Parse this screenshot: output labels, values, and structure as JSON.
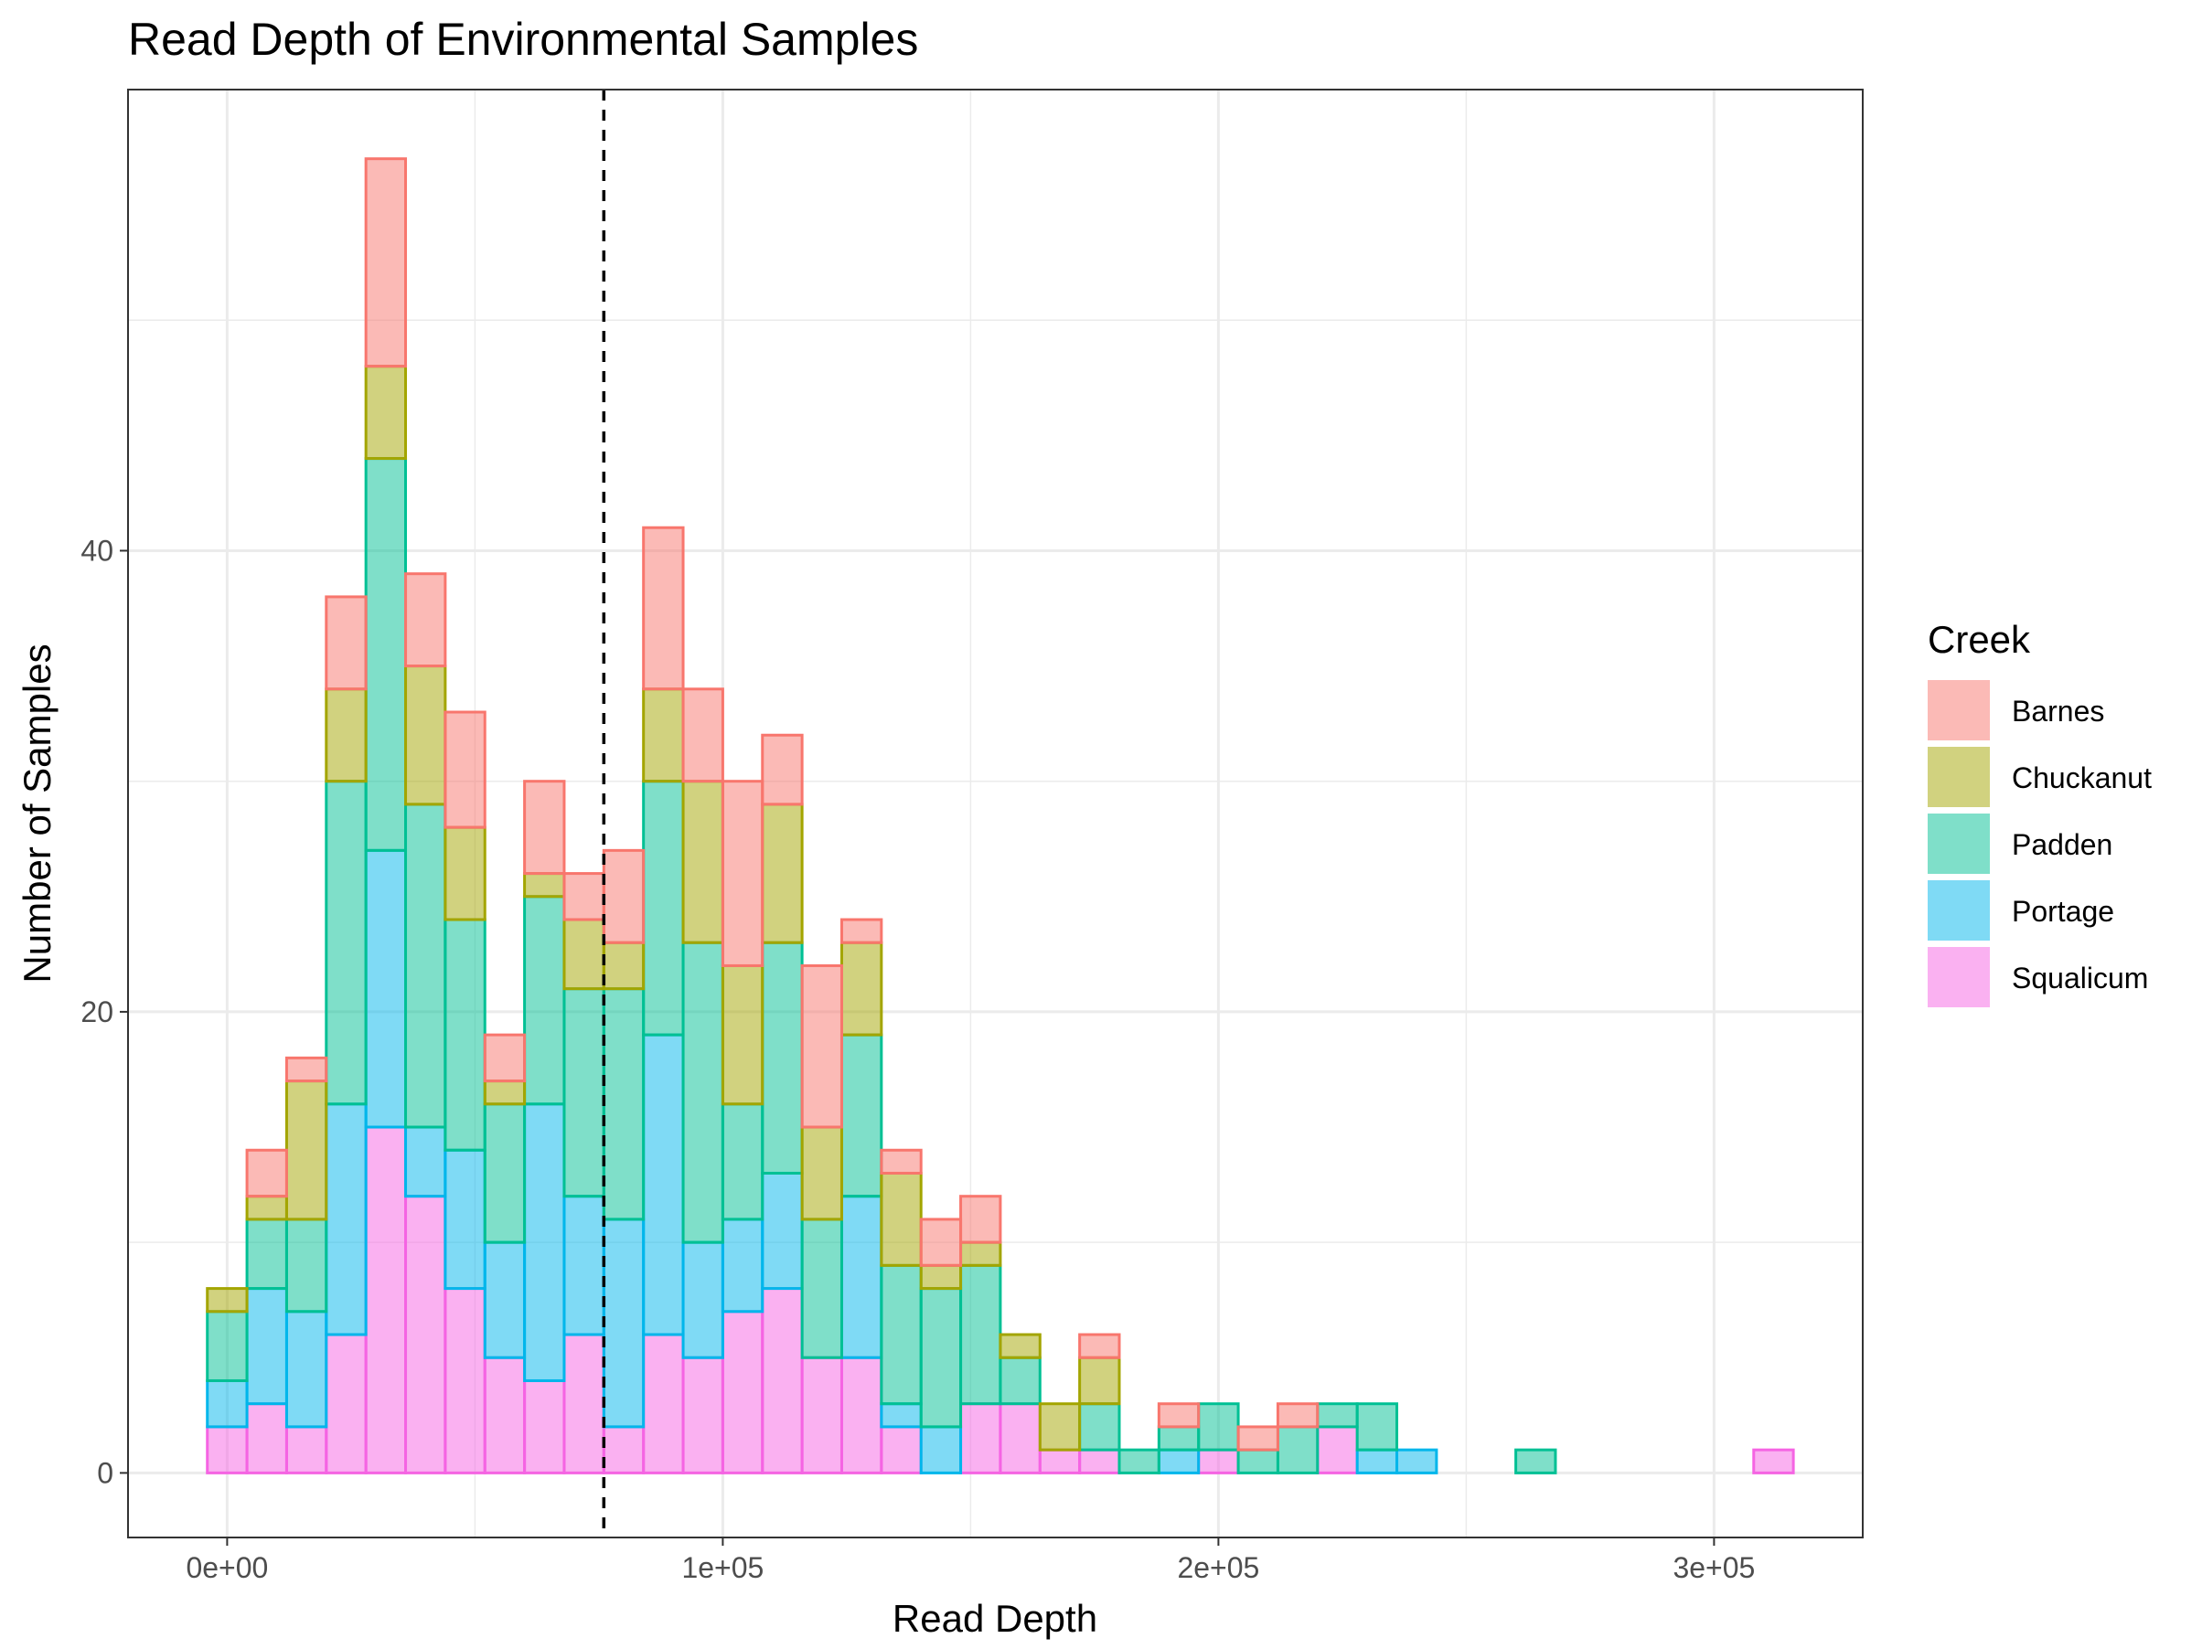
{
  "chart_data": {
    "type": "histogram",
    "stacked": true,
    "title": "Read Depth of Environmental Samples",
    "xlabel": "Read Depth",
    "ylabel": "Number of Samples",
    "xlim": [
      -20000,
      330000
    ],
    "ylim": [
      -2.8,
      60
    ],
    "x_ticks": [
      0,
      100000,
      200000,
      300000
    ],
    "x_tick_labels": [
      "0e+00",
      "1e+05",
      "2e+05",
      "3e+05"
    ],
    "y_ticks": [
      0,
      20,
      40
    ],
    "y_tick_labels": [
      "0",
      "20",
      "40"
    ],
    "grid": true,
    "bin_width": 8000,
    "bin_centers": [
      0,
      8000,
      16000,
      24000,
      32000,
      40000,
      48000,
      56000,
      64000,
      72000,
      80000,
      88000,
      96000,
      104000,
      112000,
      120000,
      128000,
      136000,
      144000,
      152000,
      160000,
      168000,
      176000,
      184000,
      192000,
      200000,
      208000,
      216000,
      224000,
      232000,
      240000,
      248000,
      256000,
      264000,
      272000,
      280000,
      288000,
      296000,
      304000,
      312000
    ],
    "series": [
      {
        "name": "Squalicum",
        "color": "#F564E3",
        "values": [
          2,
          3,
          2,
          6,
          15,
          12,
          8,
          5,
          4,
          6,
          2,
          6,
          5,
          7,
          8,
          5,
          5,
          2,
          0,
          3,
          3,
          1,
          1,
          0,
          0,
          1,
          0,
          0,
          2,
          0,
          0,
          0,
          0,
          0,
          0,
          0,
          0,
          0,
          0,
          1
        ]
      },
      {
        "name": "Portage",
        "color": "#00B6EB",
        "values": [
          2,
          5,
          5,
          10,
          12,
          3,
          6,
          5,
          12,
          6,
          9,
          13,
          5,
          4,
          5,
          0,
          7,
          1,
          2,
          0,
          0,
          0,
          0,
          0,
          1,
          0,
          0,
          0,
          0,
          1,
          1,
          0,
          0,
          0,
          0,
          0,
          0,
          0,
          0,
          0
        ]
      },
      {
        "name": "Padden",
        "color": "#00C094",
        "values": [
          3,
          3,
          4,
          14,
          17,
          14,
          10,
          6,
          9,
          9,
          10,
          11,
          13,
          5,
          10,
          6,
          7,
          6,
          6,
          6,
          2,
          0,
          2,
          1,
          1,
          2,
          1,
          2,
          1,
          2,
          0,
          0,
          0,
          1,
          0,
          0,
          0,
          0,
          0,
          0
        ]
      },
      {
        "name": "Chuckanut",
        "color": "#A3A500",
        "values": [
          1,
          1,
          6,
          4,
          4,
          6,
          4,
          1,
          1,
          3,
          2,
          4,
          7,
          6,
          6,
          4,
          4,
          4,
          1,
          1,
          1,
          2,
          2,
          0,
          0,
          0,
          0,
          0,
          0,
          0,
          0,
          0,
          0,
          0,
          0,
          0,
          0,
          0,
          0,
          0
        ]
      },
      {
        "name": "Barnes",
        "color": "#F8766D",
        "values": [
          0,
          2,
          1,
          4,
          9,
          4,
          5,
          2,
          4,
          2,
          4,
          7,
          4,
          8,
          3,
          7,
          1,
          1,
          2,
          2,
          0,
          0,
          1,
          0,
          1,
          0,
          1,
          1,
          0,
          0,
          0,
          0,
          0,
          0,
          0,
          0,
          0,
          0,
          0,
          0
        ]
      }
    ],
    "vline_x": 76000,
    "legend_title": "Creek",
    "legend_order": [
      "Barnes",
      "Chuckanut",
      "Padden",
      "Portage",
      "Squalicum"
    ],
    "legend_position": "right"
  }
}
